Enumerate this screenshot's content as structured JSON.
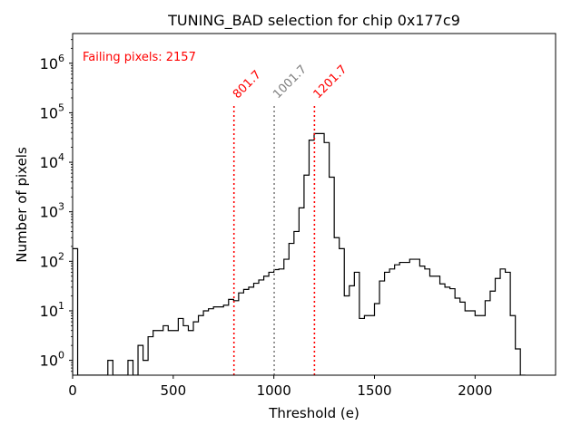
{
  "chart_data": {
    "type": "histogram",
    "title": "TUNING_BAD selection for chip 0x177c9",
    "xlabel": "Threshold (e)",
    "ylabel": "Number of pixels",
    "xlim": [
      0,
      2400
    ],
    "ylim_log10": [
      -0.3,
      6.6
    ],
    "yscale": "log",
    "x_ticks": [
      0,
      500,
      1000,
      1500,
      2000
    ],
    "x_tick_labels": [
      "0",
      "500",
      "1000",
      "1500",
      "2000"
    ],
    "y_ticks_exponent": [
      0,
      1,
      2,
      3,
      4,
      5,
      6
    ],
    "y_tick_base": "10",
    "annotation": {
      "text": "Failing pixels: 2157",
      "color": "#ff0000"
    },
    "vlines": [
      {
        "x": 801.7,
        "label": "801.7",
        "color": "#ff0000",
        "style": "dotted"
      },
      {
        "x": 1001.7,
        "label": "1001.7",
        "color": "#808080",
        "style": "dotted"
      },
      {
        "x": 1201.7,
        "label": "1201.7",
        "color": "#ff0000",
        "style": "dotted"
      }
    ],
    "bin_width": 25,
    "bin_start": 0,
    "counts": [
      180,
      0,
      0,
      0,
      0,
      0,
      0,
      1,
      0,
      0,
      0,
      1,
      0,
      2,
      1,
      3,
      4,
      4,
      5,
      4,
      4,
      7,
      5,
      4,
      6,
      8,
      10,
      11,
      12,
      12,
      13,
      17,
      16,
      23,
      27,
      30,
      36,
      42,
      50,
      60,
      68,
      70,
      110,
      230,
      400,
      1200,
      5500,
      28000,
      38000,
      38000,
      25000,
      5000,
      300,
      180,
      20,
      32,
      60,
      7,
      8,
      8,
      14,
      40,
      60,
      70,
      85,
      95,
      95,
      110,
      110,
      80,
      70,
      50,
      50,
      35,
      30,
      28,
      18,
      15,
      10,
      10,
      8,
      8,
      16,
      25,
      45,
      70,
      60,
      8,
      1.7,
      0.5
    ]
  }
}
